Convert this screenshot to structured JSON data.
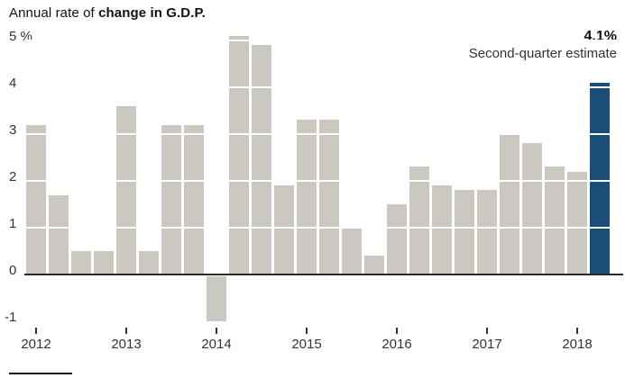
{
  "title": {
    "prefix": "Annual rate of ",
    "bold": "change in G.D.P."
  },
  "annotation": {
    "value": "4.1%",
    "label": "Second-quarter estimate"
  },
  "chart_data": {
    "type": "bar",
    "title": "Annual rate of change in G.D.P.",
    "unit": "%",
    "x": [
      "2012 Q1",
      "2012 Q2",
      "2012 Q3",
      "2012 Q4",
      "2013 Q1",
      "2013 Q2",
      "2013 Q3",
      "2013 Q4",
      "2014 Q1",
      "2014 Q2",
      "2014 Q3",
      "2014 Q4",
      "2015 Q1",
      "2015 Q2",
      "2015 Q3",
      "2015 Q4",
      "2016 Q1",
      "2016 Q2",
      "2016 Q3",
      "2016 Q4",
      "2017 Q1",
      "2017 Q2",
      "2017 Q3",
      "2017 Q4",
      "2018 Q1",
      "2018 Q2"
    ],
    "values": [
      3.2,
      1.7,
      0.5,
      0.5,
      3.6,
      0.5,
      3.2,
      3.2,
      -1.0,
      5.1,
      4.9,
      1.9,
      3.3,
      3.3,
      1.0,
      0.4,
      1.5,
      2.3,
      1.9,
      1.8,
      1.8,
      3.0,
      2.8,
      2.3,
      2.2,
      4.1
    ],
    "year_labels": [
      "2012",
      "2013",
      "2014",
      "2015",
      "2016",
      "2017",
      "2018"
    ],
    "y_tick_labels": [
      "5 %",
      "4",
      "3",
      "2",
      "1",
      "0",
      "-1"
    ],
    "y_tick_values": [
      5,
      4,
      3,
      2,
      1,
      0,
      -1
    ],
    "ylim": [
      -1,
      5
    ],
    "grid": "white lines over bars at integer values",
    "highlight": {
      "index": 25,
      "x": "2018 Q2",
      "value": 4.1,
      "value_label": "4.1%",
      "note": "Second-quarter estimate"
    },
    "colors": {
      "bar": "#cbc8c1",
      "highlight_bar": "#1a4e79",
      "zero_line": "#2b2b2b",
      "text": "#121212",
      "axis_text": "#333333"
    },
    "legend": "none"
  }
}
